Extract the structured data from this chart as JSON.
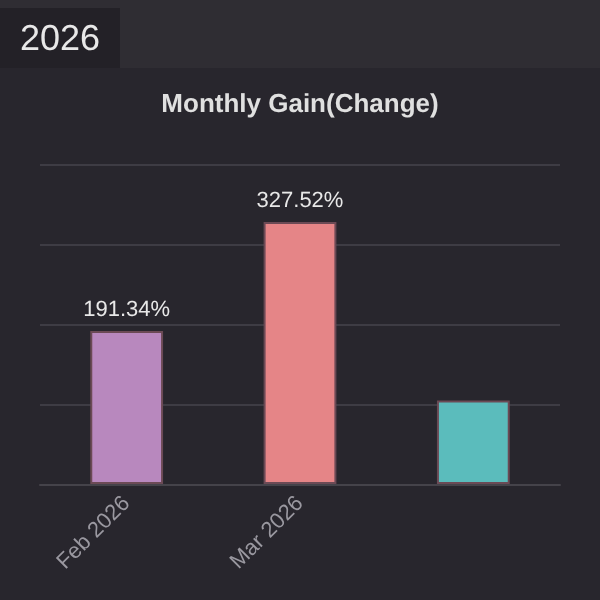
{
  "chart_data": {
    "type": "bar",
    "title": "Monthly Gain(Change)",
    "annotations": [
      "2026"
    ],
    "categories": [
      "Feb 2026",
      "Mar 2026",
      null
    ],
    "values": [
      191.34,
      327.52,
      104.5
    ],
    "colors": [
      "#b888be",
      "#e58587",
      "#5bbcbc"
    ],
    "value_labels": [
      "191.34%",
      "327.52%",
      null
    ],
    "ylim": [
      0,
      400
    ],
    "yticks": [
      {
        "value": 0,
        "label": null
      },
      {
        "value": 100,
        "label": null
      },
      {
        "value": 200,
        "label": null
      },
      {
        "value": 300,
        "label": null
      },
      {
        "value": 400,
        "label": null
      }
    ],
    "grid": "y",
    "tick_labels": "x"
  }
}
